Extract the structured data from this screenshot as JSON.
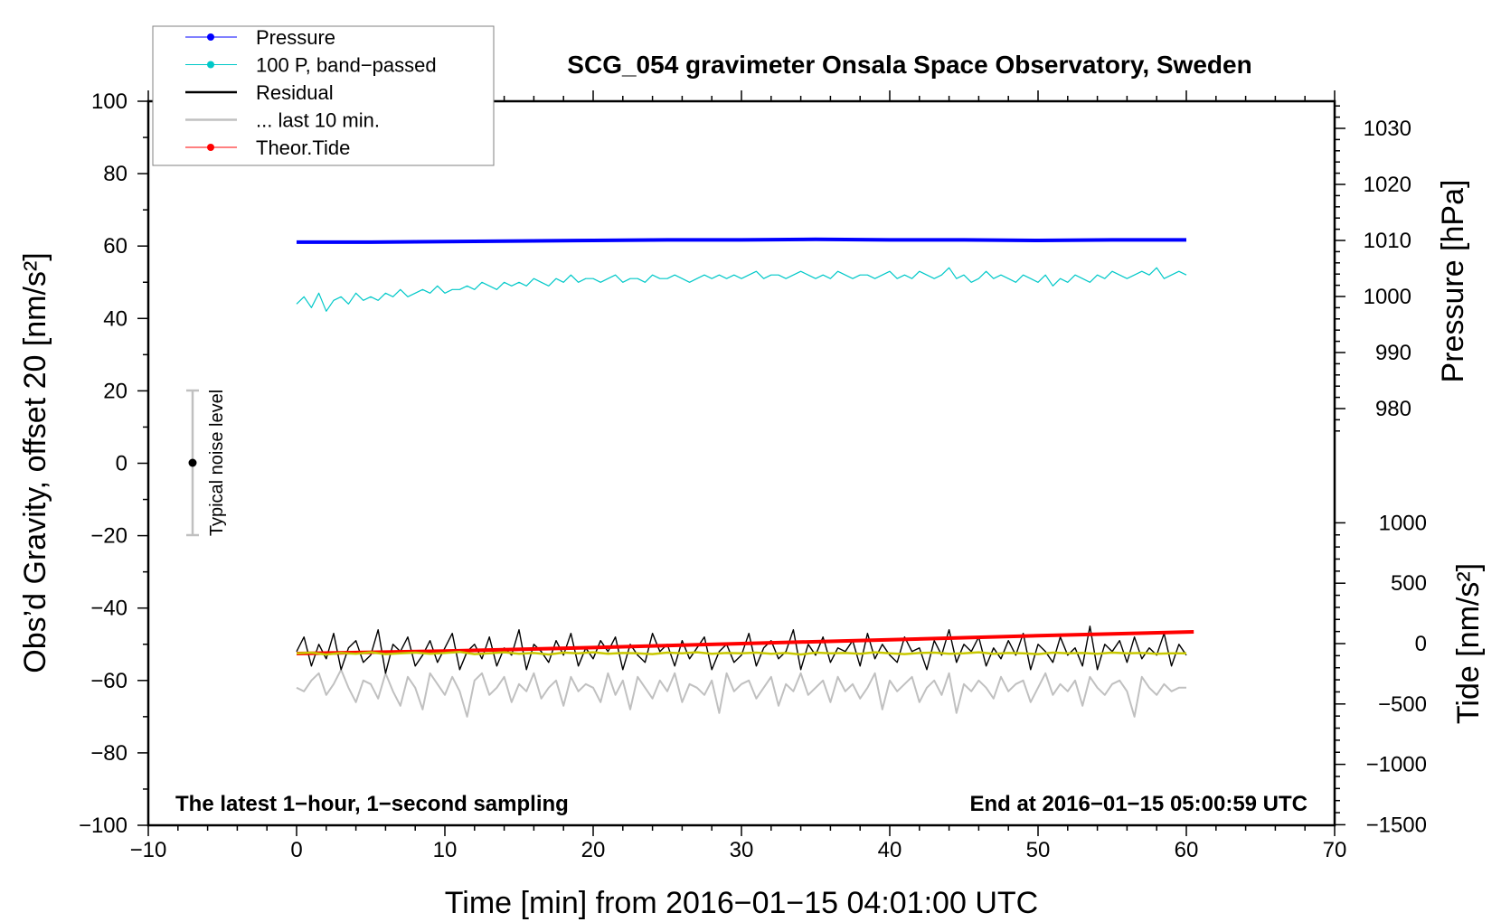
{
  "chart_data": {
    "type": "line",
    "title": "SCG_054 gravimeter Onsala Space Observatory, Sweden",
    "xlabel": "Time [min] from 2016−01−15 04:01:00 UTC",
    "ylabel": "Obs’d Gravity, offset 20 [nm/s²]",
    "y2label": "Pressure [hPa]",
    "y3label": "Tide [nm/s²]",
    "xlim": [
      -10,
      70
    ],
    "ylim": [
      -100,
      100
    ],
    "pressure_ticks": [
      980,
      990,
      1000,
      1010,
      1020,
      1030
    ],
    "tide_ticks": [
      -1500,
      -1000,
      -500,
      0,
      500,
      1000
    ],
    "xticks": [
      -10,
      0,
      10,
      20,
      30,
      40,
      50,
      60,
      70
    ],
    "yticks": [
      -100,
      -80,
      -60,
      -40,
      -20,
      0,
      20,
      40,
      60,
      80,
      100
    ],
    "xtick_labels": [
      "−10",
      "0",
      "10",
      "20",
      "30",
      "40",
      "50",
      "60",
      "70"
    ],
    "ytick_labels": [
      "−100",
      "−80",
      "−60",
      "−40",
      "−20",
      "0",
      "20",
      "40",
      "60",
      "80",
      "100"
    ],
    "pressure_tick_labels": [
      "980",
      "990",
      "1000",
      "1010",
      "1020",
      "1030"
    ],
    "tide_tick_labels": [
      "−1500",
      "−1000",
      "−500",
      "0",
      "500",
      "1000"
    ],
    "annotations": {
      "left": "The latest 1−hour, 1−second sampling",
      "right": "End at 2016−01−15 05:00:59 UTC",
      "noise": "Typical noise level"
    },
    "noise_level": {
      "x": -7,
      "center": 0,
      "low": -20,
      "high": 20
    },
    "legend": {
      "placement": "top-left",
      "entries": [
        {
          "label": "Pressure",
          "color": "#0000ff",
          "marker": true
        },
        {
          "label": "100 P, band−passed",
          "color": "#00c8c8",
          "marker": true
        },
        {
          "label": "Residual",
          "color": "#000000",
          "marker": false
        },
        {
          "label": "... last 10 min.",
          "color": "#c0c0c0",
          "marker": false
        },
        {
          "label": "Theor.Tide",
          "color": "#ff0000",
          "marker": true
        }
      ]
    },
    "series": [
      {
        "name": "Pressure",
        "axis": "pressure",
        "color": "#0000ff",
        "t": [
          0,
          5,
          10,
          15,
          20,
          25,
          30,
          35,
          40,
          45,
          50,
          55,
          60
        ],
        "values": [
          1009.7,
          1009.7,
          1009.8,
          1009.9,
          1010.0,
          1010.1,
          1010.1,
          1010.2,
          1010.1,
          1010.1,
          1010.0,
          1010.1,
          1010.1
        ]
      },
      {
        "name": "100 P, band-passed",
        "axis": "left",
        "color": "#00c8c8",
        "t_range": [
          0,
          60
        ],
        "values": [
          44,
          46,
          43,
          47,
          42,
          45,
          46,
          44,
          47,
          45,
          46,
          45,
          47,
          46,
          48,
          46,
          47,
          48,
          47,
          49,
          47,
          48,
          48,
          49,
          48,
          50,
          49,
          48,
          50,
          49,
          50,
          49,
          51,
          50,
          49,
          51,
          50,
          52,
          50,
          51,
          51,
          50,
          51,
          52,
          50,
          51,
          51,
          50,
          52,
          51,
          51,
          52,
          51,
          50,
          51,
          52,
          51,
          52,
          51,
          52,
          51,
          52,
          53,
          51,
          52,
          52,
          51,
          52,
          53,
          52,
          51,
          52,
          51,
          53,
          52,
          51,
          52,
          52,
          51,
          52,
          53,
          51,
          52,
          51,
          53,
          52,
          51,
          52,
          54,
          51,
          52,
          50,
          51,
          53,
          51,
          52,
          51,
          50,
          52,
          51,
          50,
          52,
          49,
          51,
          50,
          52,
          51,
          50,
          52,
          51,
          53,
          52,
          51,
          52,
          53,
          52,
          54,
          51,
          52,
          53,
          52
        ]
      },
      {
        "name": "Residual",
        "axis": "left",
        "color": "#000000",
        "t_range": [
          0,
          60
        ],
        "values": [
          -52,
          -48,
          -56,
          -50,
          -54,
          -47,
          -57,
          -51,
          -49,
          -55,
          -53,
          -46,
          -58,
          -50,
          -52,
          -48,
          -56,
          -53,
          -49,
          -55,
          -51,
          -47,
          -57,
          -52,
          -50,
          -54,
          -48,
          -56,
          -51,
          -53,
          -46,
          -57,
          -50,
          -52,
          -55,
          -49,
          -53,
          -47,
          -56,
          -51,
          -54,
          -49,
          -52,
          -48,
          -57,
          -50,
          -53,
          -55,
          -47,
          -52,
          -50,
          -56,
          -49,
          -54,
          -51,
          -48,
          -57,
          -52,
          -50,
          -55,
          -53,
          -47,
          -56,
          -51,
          -49,
          -54,
          -52,
          -46,
          -57,
          -50,
          -53,
          -48,
          -55,
          -51,
          -52,
          -49,
          -56,
          -47,
          -54,
          -50,
          -53,
          -55,
          -48,
          -52,
          -51,
          -57,
          -49,
          -53,
          -46,
          -55,
          -50,
          -52,
          -48,
          -56,
          -51,
          -54,
          -49,
          -53,
          -47,
          -57,
          -50,
          -52,
          -55,
          -48,
          -53,
          -51,
          -56,
          -45,
          -57,
          -50,
          -52,
          -49,
          -55,
          -48,
          -54,
          -51,
          -53,
          -47,
          -56,
          -50,
          -53
        ]
      },
      {
        "name": "Residual smoothed",
        "axis": "left",
        "color": "#c8c800",
        "t_range": [
          0,
          60
        ],
        "values": [
          -52.5,
          -52.3,
          -52.8,
          -52.4,
          -52.6,
          -52.2,
          -52.7,
          -52.5,
          -52.3,
          -52.6,
          -52.4,
          -52.1,
          -52.7,
          -52.5,
          -52.2,
          -52.6,
          -52.4,
          -52.8,
          -52.3,
          -52.5,
          -52.2,
          -52.6,
          -52.4,
          -52.5,
          -52.7,
          -52.3,
          -52.5,
          -52.2,
          -52.6,
          -52.4,
          -52.5,
          -52.3,
          -52.6,
          -52.4,
          -52.8,
          -52.3,
          -52.5,
          -52.4,
          -52.6,
          -52.2,
          -52.5,
          -52.7,
          -52.4,
          -52.3,
          -52.6,
          -52.5,
          -52.2,
          -52.6,
          -52.4,
          -52.5,
          -52.7,
          -52.3,
          -52.5,
          -52.4,
          -52.6,
          -52.3,
          -52.5,
          -52.4,
          -52.6,
          -52.5,
          -52.5
        ]
      },
      {
        "name": "... last 10 min.",
        "axis": "left",
        "color": "#c0c0c0",
        "t_range": [
          0,
          60
        ],
        "values": [
          -62,
          -63,
          -60,
          -58,
          -64,
          -61,
          -57,
          -62,
          -66,
          -60,
          -61,
          -65,
          -58,
          -63,
          -67,
          -59,
          -62,
          -68,
          -58,
          -61,
          -64,
          -59,
          -63,
          -70,
          -60,
          -58,
          -64,
          -62,
          -59,
          -66,
          -61,
          -63,
          -58,
          -65,
          -62,
          -60,
          -67,
          -59,
          -63,
          -61,
          -62,
          -66,
          -58,
          -64,
          -60,
          -68,
          -59,
          -62,
          -65,
          -60,
          -63,
          -58,
          -66,
          -61,
          -62,
          -64,
          -60,
          -69,
          -58,
          -63,
          -61,
          -60,
          -65,
          -62,
          -59,
          -67,
          -61,
          -63,
          -58,
          -64,
          -62,
          -60,
          -66,
          -59,
          -63,
          -61,
          -65,
          -62,
          -58,
          -68,
          -60,
          -63,
          -61,
          -59,
          -66,
          -62,
          -60,
          -64,
          -58,
          -69,
          -61,
          -63,
          -60,
          -62,
          -65,
          -59,
          -63,
          -61,
          -60,
          -66,
          -62,
          -58,
          -64,
          -61,
          -63,
          -60,
          -67,
          -59,
          -62,
          -64,
          -61,
          -60,
          -63,
          -70,
          -59,
          -62,
          -64,
          -61,
          -63,
          -62,
          -62
        ]
      },
      {
        "name": "Theor.Tide",
        "axis": "tide",
        "color": "#ff0000",
        "t": [
          0,
          10,
          20,
          30,
          40,
          50,
          60.5
        ],
        "values": [
          -82,
          -62,
          -33,
          0,
          32,
          65,
          97
        ]
      }
    ]
  }
}
